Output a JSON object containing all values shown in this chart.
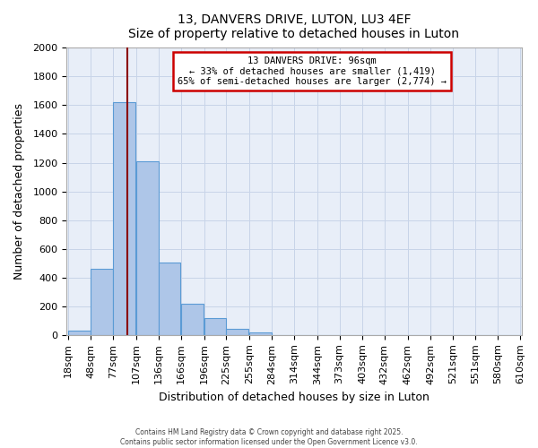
{
  "title": "13, DANVERS DRIVE, LUTON, LU3 4EF",
  "subtitle": "Size of property relative to detached houses in Luton",
  "xlabel": "Distribution of detached houses by size in Luton",
  "ylabel": "Number of detached properties",
  "bar_values": [
    30,
    460,
    1620,
    1210,
    505,
    215,
    115,
    45,
    15,
    0,
    0,
    0,
    0,
    0,
    0,
    0,
    0,
    0,
    0,
    0
  ],
  "bin_left_edges": [
    18,
    48,
    77,
    107,
    136,
    166,
    196,
    225,
    255,
    284,
    314,
    344,
    373,
    403,
    432,
    462,
    492,
    521,
    551,
    580
  ],
  "bin_width": 29,
  "bin_labels": [
    "18sqm",
    "48sqm",
    "77sqm",
    "107sqm",
    "136sqm",
    "166sqm",
    "196sqm",
    "225sqm",
    "255sqm",
    "284sqm",
    "314sqm",
    "344sqm",
    "373sqm",
    "403sqm",
    "432sqm",
    "462sqm",
    "492sqm",
    "521sqm",
    "551sqm",
    "580sqm",
    "610sqm"
  ],
  "bar_color": "#aec6e8",
  "bar_edge_color": "#5b9bd5",
  "bg_color": "#e8eef8",
  "grid_color": "#c8d4e8",
  "vline_x": 96,
  "vline_color": "#8b0000",
  "annotation_title": "13 DANVERS DRIVE: 96sqm",
  "annotation_line1": "← 33% of detached houses are smaller (1,419)",
  "annotation_line2": "65% of semi-detached houses are larger (2,774) →",
  "annotation_box_color": "#ffffff",
  "annotation_border_color": "#cc0000",
  "ylim": [
    0,
    2000
  ],
  "yticks": [
    0,
    200,
    400,
    600,
    800,
    1000,
    1200,
    1400,
    1600,
    1800,
    2000
  ],
  "footer_line1": "Contains HM Land Registry data © Crown copyright and database right 2025.",
  "footer_line2": "Contains public sector information licensed under the Open Government Licence v3.0."
}
